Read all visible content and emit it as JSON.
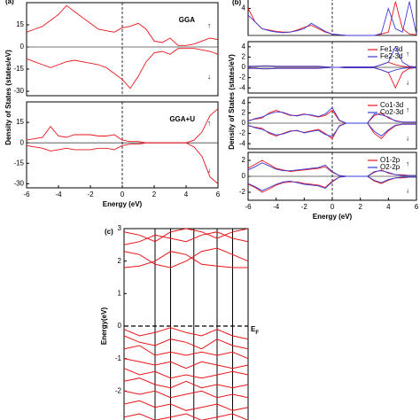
{
  "chart_data": [
    {
      "type": "dos",
      "panel_label": "(a)",
      "title": "GGA",
      "up_label": "↑",
      "down_label": "↓",
      "ylabel": "Density of States (states/eV)",
      "x": [
        -6,
        -5.5,
        -5,
        -4.5,
        -4,
        -3.5,
        -3,
        -2.5,
        -2,
        -1.5,
        -1,
        -0.5,
        0,
        0.5,
        1,
        1.5,
        2,
        2.5,
        3,
        3.5,
        4,
        4.5,
        5,
        5.5,
        6
      ],
      "xlim": [
        -6,
        6
      ],
      "ylim": [
        -33,
        30
      ],
      "yticks": [
        -30,
        -15,
        0,
        15
      ],
      "series": [
        {
          "color": "#e8141a",
          "up": [
            10,
            12,
            14,
            18,
            22,
            28,
            24,
            20,
            16,
            12,
            11,
            10,
            13,
            14,
            16,
            12,
            4,
            3,
            6,
            1,
            1,
            2,
            4,
            6,
            5
          ],
          "down": [
            -8,
            -10,
            -12,
            -14,
            -12,
            -10,
            -9,
            -10,
            -11,
            -12,
            -14,
            -18,
            -22,
            -28,
            -20,
            -10,
            -4,
            -3,
            -5,
            -1,
            -1,
            -1,
            -2,
            -3,
            -5
          ]
        }
      ]
    },
    {
      "type": "dos",
      "title": "GGA+U",
      "up_label": "↑",
      "down_label": "↓",
      "xlabel": "Energy (eV)",
      "xticks": [
        -6,
        -4,
        -2,
        0,
        2,
        4,
        6
      ],
      "x": [
        -6,
        -5.5,
        -5,
        -4.5,
        -4,
        -3.5,
        -3,
        -2.5,
        -2,
        -1.5,
        -1,
        -0.5,
        0,
        0.5,
        1,
        1.5,
        2,
        2.5,
        3,
        3.5,
        4,
        4.5,
        5,
        5.5,
        6
      ],
      "xlim": [
        -6,
        6
      ],
      "ylim": [
        -33,
        30
      ],
      "yticks": [
        -30,
        -15,
        0,
        15
      ],
      "series": [
        {
          "color": "#e8141a",
          "up": [
            2,
            3,
            4,
            12,
            5,
            4,
            6,
            6,
            6,
            5,
            5,
            6,
            2,
            1,
            1,
            0,
            0,
            0,
            0,
            0,
            0,
            2,
            8,
            20,
            25
          ],
          "down": [
            -2,
            -3,
            -4,
            -6,
            -5,
            -4,
            -5,
            -5,
            -5,
            -4,
            -4,
            -5,
            -2,
            -1,
            -1,
            0,
            0,
            0,
            0,
            0,
            0,
            -3,
            -10,
            -25,
            -30
          ]
        }
      ]
    },
    {
      "type": "dos",
      "panel_label": "(b)",
      "x": [
        -6,
        -5.5,
        -5,
        -4.5,
        -4,
        -3.5,
        -3,
        -2.5,
        -2,
        -1.5,
        -1,
        -0.5,
        0,
        0.5,
        1,
        1.5,
        2,
        2.5,
        3,
        3.5,
        4,
        4.5,
        5,
        5.5,
        6
      ],
      "xlim": [
        -6,
        6
      ],
      "ylim": [
        0,
        5.5
      ],
      "yticks": [
        4
      ],
      "series": [
        {
          "color": "#e8141a",
          "up": [
            4,
            2,
            1,
            0.8,
            0.6,
            0.5,
            0.5,
            0.8,
            1.2,
            1.5,
            1,
            0.5,
            0.2,
            0.1,
            0,
            0,
            0,
            0,
            0,
            0.2,
            0.5,
            5,
            1,
            0.2,
            0.1
          ]
        },
        {
          "color": "#3a3ad8",
          "up": [
            3,
            2,
            1,
            0.7,
            0.5,
            0.4,
            0.5,
            0.7,
            1,
            1.8,
            1.2,
            0.6,
            0.2,
            0.1,
            0,
            0,
            0,
            0,
            0,
            0.3,
            4,
            1,
            0.5,
            5,
            0.2
          ]
        }
      ]
    },
    {
      "type": "dos",
      "x": [
        -6,
        -5.5,
        -5,
        -4.5,
        -4,
        -3.5,
        -3,
        -2.5,
        -2,
        -1.5,
        -1,
        -0.5,
        0,
        0.5,
        1,
        1.5,
        2,
        2.5,
        3,
        3.5,
        4,
        4.5,
        5,
        5.5,
        6
      ],
      "xlim": [
        -6,
        6
      ],
      "ylim": [
        -5,
        5
      ],
      "yticks": [
        -4,
        -2,
        0,
        2,
        4
      ],
      "up_label": "↑",
      "down_label": "↓",
      "series": [
        {
          "name": "Fe1-3d",
          "color": "#e8141a",
          "up": [
            0.2,
            0.2,
            0.3,
            0.3,
            0.2,
            0.2,
            0.2,
            0.2,
            0.2,
            0.2,
            0.2,
            0.1,
            0,
            0,
            0.1,
            0.1,
            0.1,
            0.1,
            0.1,
            0.5,
            1,
            0.5,
            0.2,
            0.1,
            0.1
          ],
          "down": [
            -0.2,
            -0.2,
            -0.3,
            -0.3,
            -0.2,
            -0.2,
            -0.2,
            -0.2,
            -0.2,
            -0.2,
            -0.2,
            -0.1,
            0,
            0,
            -0.1,
            -0.1,
            -0.1,
            -0.1,
            -0.1,
            -0.5,
            -1,
            -4,
            -1,
            -0.2,
            -0.1
          ]
        },
        {
          "name": "Fe2-3d",
          "color": "#3a3ad8",
          "up": [
            0.2,
            0.2,
            0.3,
            0.3,
            0.2,
            0.2,
            0.2,
            0.2,
            0.2,
            0.2,
            0.2,
            0.1,
            0,
            0,
            0.1,
            0.1,
            0.1,
            0.1,
            0.1,
            0.5,
            1,
            4,
            1,
            0.2,
            0.1
          ],
          "down": [
            -0.2,
            -0.2,
            -0.3,
            -0.3,
            -0.2,
            -0.2,
            -0.2,
            -0.2,
            -0.2,
            -0.2,
            -0.2,
            -0.1,
            0,
            0,
            -0.1,
            -0.1,
            -0.1,
            -0.1,
            -0.1,
            -0.5,
            -1,
            -0.5,
            -0.2,
            -0.1,
            -0.1
          ]
        }
      ]
    },
    {
      "type": "dos",
      "ylabel": "Density of States (states/eV)",
      "x": [
        -6,
        -5.5,
        -5,
        -4.5,
        -4,
        -3.5,
        -3,
        -2.5,
        -2,
        -1.5,
        -1,
        -0.5,
        0,
        0.5,
        1,
        1.5,
        2,
        2.5,
        3,
        3.5,
        4,
        4.5,
        5,
        5.5,
        6
      ],
      "xlim": [
        -6,
        6
      ],
      "ylim": [
        -5,
        5
      ],
      "yticks": [
        -4,
        -2,
        0,
        2,
        4
      ],
      "up_label": "↑",
      "down_label": "↓",
      "series": [
        {
          "name": "Co1-3d",
          "color": "#e8141a",
          "up": [
            0.5,
            0.8,
            1,
            2,
            2.5,
            2,
            1.5,
            1.5,
            1.8,
            1.5,
            1.2,
            1.5,
            2.5,
            0.5,
            0,
            0,
            0,
            0,
            1.5,
            2,
            1,
            0.5,
            0.2,
            0.2,
            0.2
          ],
          "down": [
            -0.5,
            -0.8,
            -1,
            -2,
            -2.5,
            -2,
            -1.5,
            -1.5,
            -1.8,
            -1.5,
            -1.2,
            -2,
            -3,
            -0.5,
            0,
            0,
            0,
            0,
            -2,
            -3,
            -1.5,
            -0.5,
            -0.2,
            -0.2,
            -0.2
          ]
        },
        {
          "name": "Co2-3d",
          "color": "#3a3ad8",
          "up": [
            0.4,
            0.9,
            1.2,
            1.8,
            2.2,
            2.1,
            1.6,
            1.4,
            1.7,
            1.6,
            1.3,
            1.8,
            3,
            0.6,
            0,
            0,
            0,
            0,
            1.8,
            1.6,
            1.2,
            0.4,
            0.2,
            0.2,
            0.2
          ],
          "down": [
            -0.4,
            -0.9,
            -1.2,
            -1.8,
            -2.3,
            -2.1,
            -1.6,
            -1.4,
            -1.9,
            -1.6,
            -1.4,
            -2.2,
            -2.6,
            -0.6,
            0,
            0,
            0,
            0,
            -1.6,
            -2.5,
            -1.3,
            -0.4,
            -0.2,
            -0.2,
            -0.2
          ]
        }
      ]
    },
    {
      "type": "dos",
      "xlabel": "Energy (eV)",
      "xticks": [
        -6,
        -4,
        -2,
        0,
        2,
        4,
        6
      ],
      "x": [
        -6,
        -5.5,
        -5,
        -4.5,
        -4,
        -3.5,
        -3,
        -2.5,
        -2,
        -1.5,
        -1,
        -0.5,
        0,
        0.5,
        1,
        1.5,
        2,
        2.5,
        3,
        3.5,
        4,
        4.5,
        5,
        5.5,
        6
      ],
      "xlim": [
        -6,
        6
      ],
      "ylim": [
        -3,
        3
      ],
      "yticks": [
        -2,
        0,
        2
      ],
      "up_label": "↑",
      "down_label": "↓",
      "series": [
        {
          "name": "O1-2p",
          "color": "#e8141a",
          "up": [
            1,
            1.5,
            2,
            1.5,
            1,
            0.8,
            0.6,
            0.7,
            0.8,
            0.9,
            1,
            1.2,
            0.5,
            0.1,
            0,
            0,
            0,
            0,
            0.5,
            0.8,
            0.4,
            0.2,
            0.2,
            0.1,
            0.1
          ],
          "down": [
            -1,
            -1.4,
            -2,
            -1.6,
            -1.1,
            -0.8,
            -0.7,
            -0.7,
            -0.9,
            -1,
            -1.1,
            -1.4,
            -0.6,
            -0.1,
            0,
            0,
            0,
            0,
            -0.6,
            -0.9,
            -0.5,
            -0.2,
            -0.2,
            -0.1,
            -0.1
          ]
        },
        {
          "name": "O2-2p",
          "color": "#3a3ad8",
          "up": [
            0.8,
            1.2,
            1.7,
            1.3,
            0.9,
            0.7,
            0.7,
            0.8,
            0.9,
            1,
            1.1,
            1.4,
            0.6,
            0.1,
            0,
            0,
            0,
            0,
            0.6,
            0.7,
            0.5,
            0.2,
            0.1,
            0.1,
            0.1
          ],
          "down": [
            -0.9,
            -1.3,
            -1.8,
            -1.4,
            -1,
            -0.7,
            -0.6,
            -0.8,
            -1,
            -1.1,
            -1.2,
            -1.5,
            -0.7,
            -0.1,
            0,
            0,
            0,
            0,
            -0.5,
            -0.8,
            -0.4,
            -0.2,
            -0.1,
            -0.1,
            -0.1
          ]
        }
      ]
    },
    {
      "type": "band",
      "panel_label": "(c)",
      "ylabel": "Energy(eV)",
      "fermi_level": 0,
      "fermi_label": {
        "main": "E",
        "sub": "F"
      },
      "x": [
        0,
        1,
        2,
        3,
        4,
        5,
        6,
        7,
        8
      ],
      "xlim": [
        0,
        8
      ],
      "ylim": [
        -3,
        3
      ],
      "yticks": [
        -2,
        -1,
        0,
        1,
        2,
        3
      ],
      "color": "#e8141a",
      "bands": [
        [
          1.8,
          1.85,
          2.0,
          2.3,
          2.2,
          1.9,
          1.85,
          1.8,
          1.8
        ],
        [
          2.3,
          2.2,
          1.9,
          1.8,
          2.0,
          2.3,
          2.4,
          2.2,
          2.0
        ],
        [
          2.5,
          2.6,
          2.8,
          2.7,
          2.6,
          2.8,
          2.9,
          2.7,
          2.6
        ],
        [
          2.9,
          2.8,
          2.6,
          2.9,
          3.0,
          2.9,
          2.7,
          2.9,
          3.0
        ],
        [
          -0.1,
          -0.3,
          -0.2,
          -0.05,
          -0.2,
          -0.3,
          -0.1,
          -0.3,
          -0.4
        ],
        [
          -0.3,
          -0.5,
          -0.6,
          -0.4,
          -0.5,
          -0.7,
          -0.4,
          -0.6,
          -0.7
        ],
        [
          -0.7,
          -0.6,
          -0.9,
          -0.8,
          -0.9,
          -0.8,
          -0.9,
          -0.8,
          -1.0
        ],
        [
          -1.0,
          -1.1,
          -1.2,
          -1.1,
          -1.3,
          -1.1,
          -1.2,
          -1.3,
          -1.2
        ],
        [
          -1.3,
          -1.5,
          -1.4,
          -1.6,
          -1.5,
          -1.6,
          -1.5,
          -1.4,
          -1.5
        ],
        [
          -1.7,
          -1.6,
          -1.8,
          -1.9,
          -1.7,
          -1.9,
          -1.8,
          -1.9,
          -1.8
        ],
        [
          -2.0,
          -2.1,
          -2.0,
          -2.2,
          -2.1,
          -2.0,
          -2.2,
          -2.1,
          -2.2
        ],
        [
          -2.4,
          -2.3,
          -2.5,
          -2.4,
          -2.6,
          -2.5,
          -2.4,
          -2.6,
          -2.5
        ],
        [
          -2.8,
          -2.7,
          -2.9,
          -2.8,
          -2.7,
          -2.9,
          -2.8,
          -2.7,
          -2.9
        ]
      ]
    }
  ]
}
